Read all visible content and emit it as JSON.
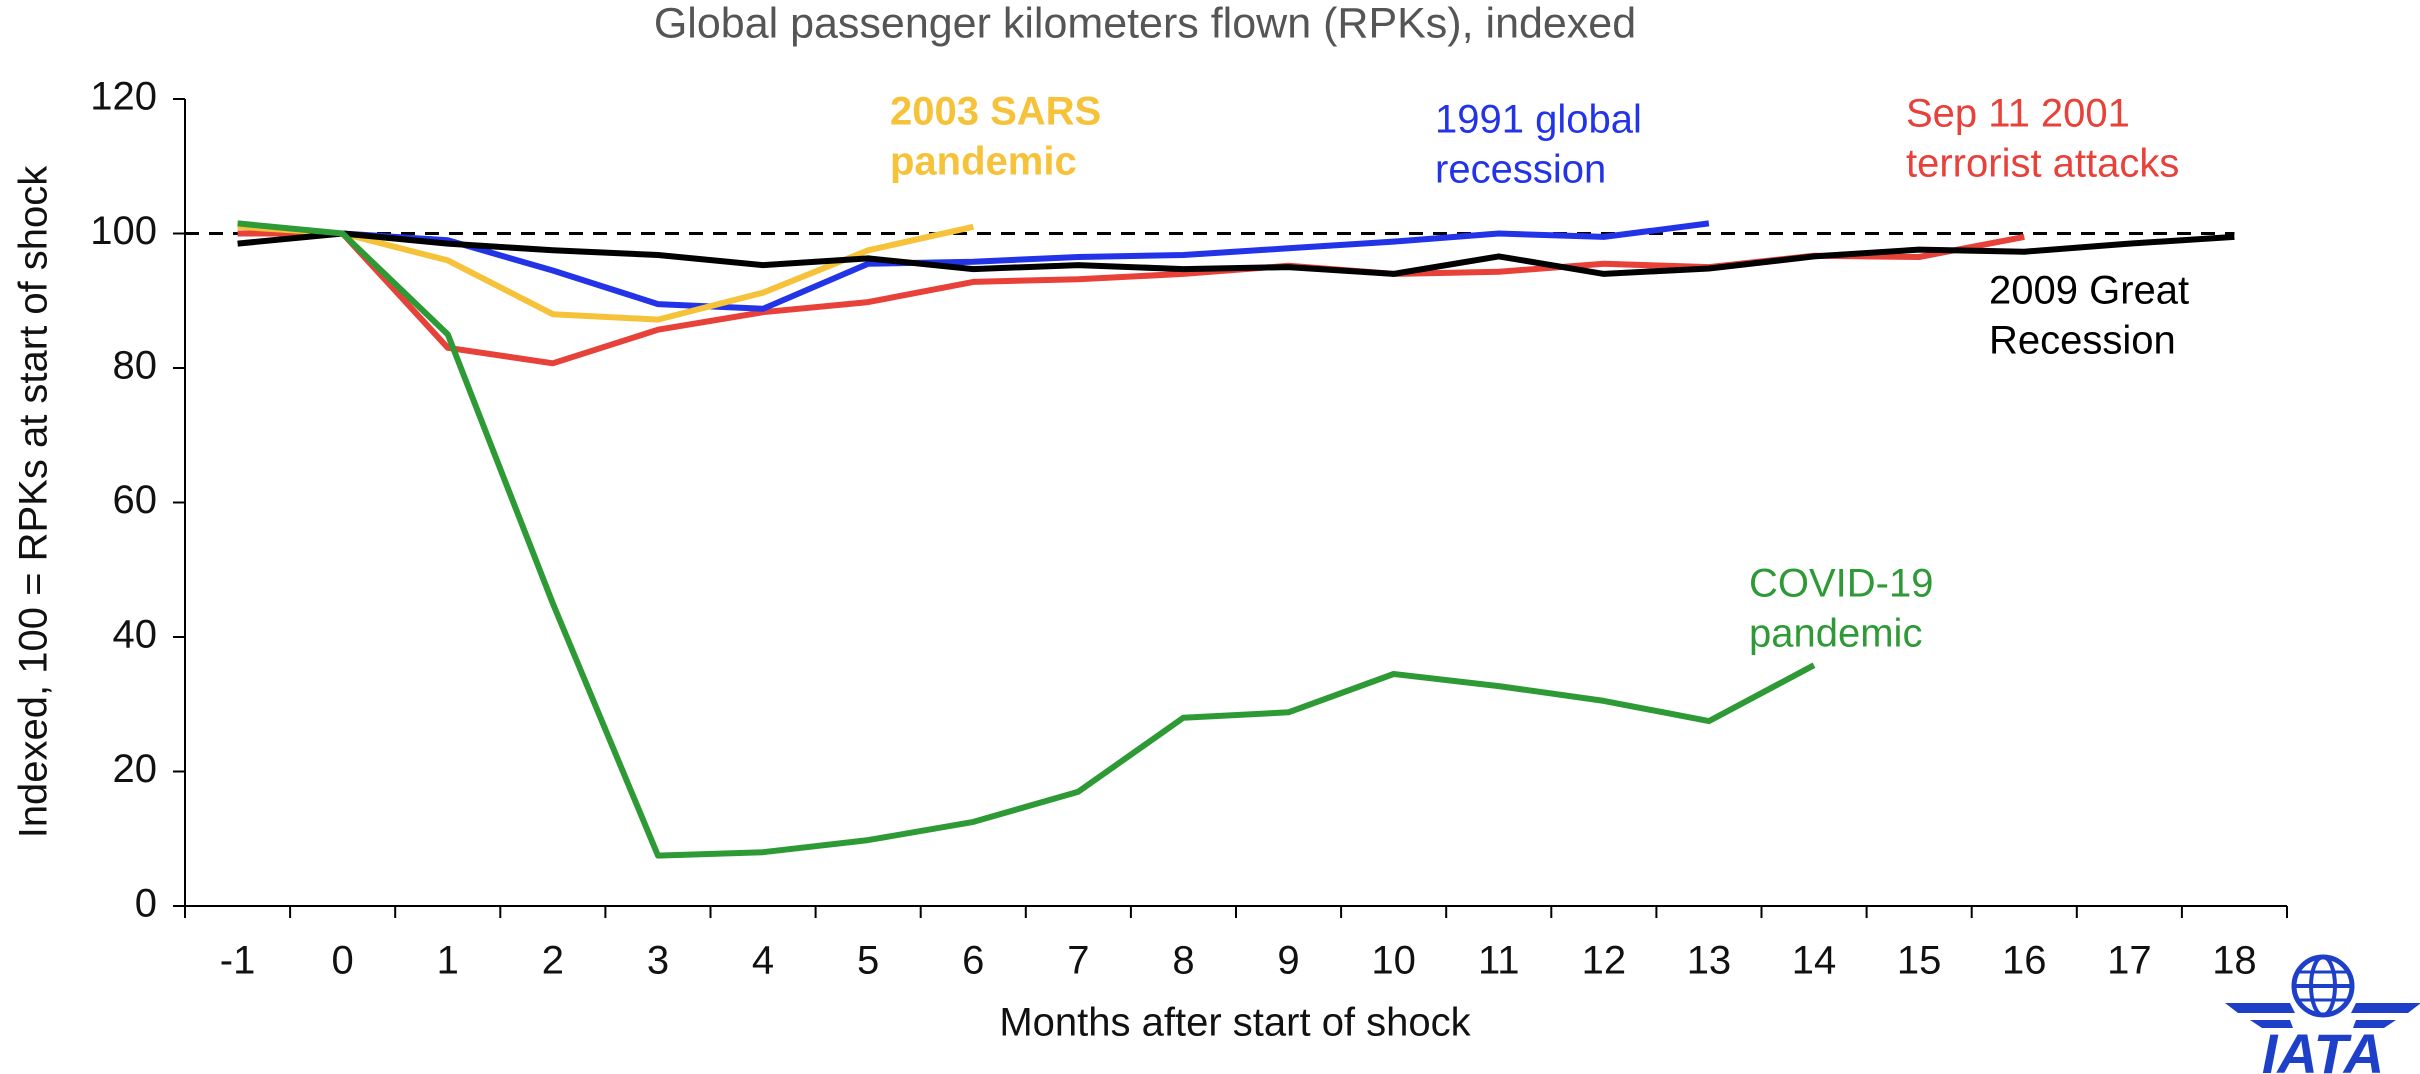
{
  "chart_data": {
    "type": "line",
    "title": "Global passenger kilometers flown (RPKs), indexed",
    "x_label": "Months after start of shock",
    "y_label": "Indexed, 100 = RPKs at start of shock",
    "categories": [
      "-1",
      "0",
      "1",
      "2",
      "3",
      "4",
      "5",
      "6",
      "7",
      "8",
      "9",
      "10",
      "11",
      "12",
      "13",
      "14",
      "15",
      "16",
      "17",
      "18"
    ],
    "ylim": [
      0,
      120
    ],
    "yticks": [
      0,
      20,
      40,
      60,
      80,
      100,
      120
    ],
    "reference_line": 100,
    "series": [
      {
        "label": [
          "Sep 11 2001",
          "terrorist attacks"
        ],
        "color": "#e8413a",
        "values": [
          100,
          100,
          83,
          80.7,
          85.7,
          88.3,
          89.8,
          92.8,
          93.2,
          94,
          95.2,
          94,
          94.3,
          95.5,
          95,
          96.7,
          96.5,
          99.5,
          null,
          null
        ]
      },
      {
        "label": [
          "1991 global",
          "recession"
        ],
        "color": "#2233e8",
        "values": [
          null,
          100,
          99,
          94.5,
          89.5,
          88.8,
          95.5,
          95.8,
          96.5,
          96.8,
          97.8,
          98.8,
          100,
          99.5,
          101.5,
          null,
          null,
          null,
          null,
          null
        ]
      },
      {
        "label": [
          "2003 SARS",
          "pandemic"
        ],
        "color": "#f5c239",
        "bold": true,
        "values": [
          101,
          100,
          96,
          88,
          87.2,
          91.2,
          97.5,
          101,
          null,
          null,
          null,
          null,
          null,
          null,
          null,
          null,
          null,
          null,
          null,
          null
        ]
      },
      {
        "label": [
          "2009 Great",
          "Recession"
        ],
        "color": "#000000",
        "values": [
          98.5,
          100,
          98.5,
          97.5,
          96.8,
          95.3,
          96.3,
          94.7,
          95.3,
          94.7,
          95,
          94,
          96.6,
          94,
          94.8,
          96.6,
          97.6,
          97.3,
          98.5,
          99.5
        ]
      },
      {
        "label": [
          "COVID-19",
          "pandemic"
        ],
        "color": "#2e9a35",
        "values": [
          101.5,
          100,
          85,
          45,
          7.5,
          8,
          9.8,
          12.5,
          17,
          28,
          28.8,
          34.5,
          32.7,
          30.5,
          27.5,
          35.8,
          null,
          null,
          null,
          null
        ]
      }
    ]
  },
  "logo": "IATA"
}
